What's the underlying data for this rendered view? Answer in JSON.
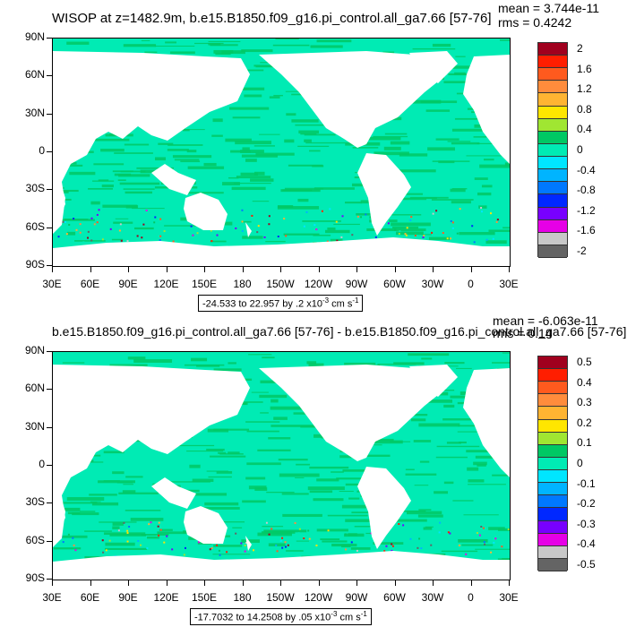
{
  "chart_data": [
    {
      "type": "heatmap",
      "title": "WISOP at z=1482.9m, b.e15.B1850.f09_g16.pi_control.all_ga7.66 [57-76]",
      "stats": {
        "mean": "mean = 3.744e-11",
        "rms": "rms = 0.4242"
      },
      "x_ticks": [
        "30E",
        "60E",
        "90E",
        "120E",
        "150E",
        "180",
        "150W",
        "120W",
        "90W",
        "60W",
        "30W",
        "0",
        "30E"
      ],
      "y_ticks": [
        "90N",
        "60N",
        "30N",
        "0",
        "30S",
        "60S",
        "90S"
      ],
      "xlim": [
        30,
        390
      ],
      "ylim": [
        -90,
        90
      ],
      "colorbar_labels": [
        "2",
        "1.6",
        "1.2",
        "0.8",
        "0.4",
        "0",
        "-0.4",
        "-0.8",
        "-1.2",
        "-1.6",
        "-2"
      ],
      "colorbar_colors": [
        "#a0001e",
        "#ff1e00",
        "#ff5a1e",
        "#ff8c3c",
        "#ffb432",
        "#ffe600",
        "#a0e632",
        "#00c864",
        "#00ebb4",
        "#00e6ff",
        "#00b4ff",
        "#0078ff",
        "#0028ff",
        "#7800ff",
        "#e600e6",
        "#c8c8c8",
        "#646464"
      ],
      "range_text": "-24.533 to 22.957 by .2 x10",
      "range_exp": "-3",
      "range_unit": " cm s",
      "range_unit_exp": "-1"
    },
    {
      "type": "heatmap",
      "title": "b.e15.B1850.f09_g16.pi_control.all_ga7.66 [57-76] - b.e15.B1850.f09_g16.pi_control.all_ga7.66 [57-76]",
      "stats": {
        "mean": "mean = -6.063e-11",
        "rms": "rms = 0.14"
      },
      "x_ticks": [
        "30E",
        "60E",
        "90E",
        "120E",
        "150E",
        "180",
        "150W",
        "120W",
        "90W",
        "60W",
        "30W",
        "0",
        "30E"
      ],
      "y_ticks": [
        "90N",
        "60N",
        "30N",
        "0",
        "30S",
        "60S",
        "90S"
      ],
      "xlim": [
        30,
        390
      ],
      "ylim": [
        -90,
        90
      ],
      "colorbar_labels": [
        "0.5",
        "0.4",
        "0.3",
        "0.2",
        "0.1",
        "0",
        "-0.1",
        "-0.2",
        "-0.3",
        "-0.4",
        "-0.5"
      ],
      "colorbar_colors": [
        "#a0001e",
        "#ff1e00",
        "#ff5a1e",
        "#ff8c3c",
        "#ffb432",
        "#ffe600",
        "#a0e632",
        "#00c864",
        "#00ebb4",
        "#00e6ff",
        "#00b4ff",
        "#0078ff",
        "#0028ff",
        "#7800ff",
        "#e600e6",
        "#c8c8c8",
        "#646464"
      ],
      "range_text": "-17.7032 to 14.2508 by .05 x10",
      "range_exp": "-3",
      "range_unit": " cm s",
      "range_unit_exp": "-1"
    }
  ],
  "colors": {
    "ocean_primary": "#00ebb4",
    "ocean_secondary": "#00c864",
    "land": "#ffffff"
  }
}
